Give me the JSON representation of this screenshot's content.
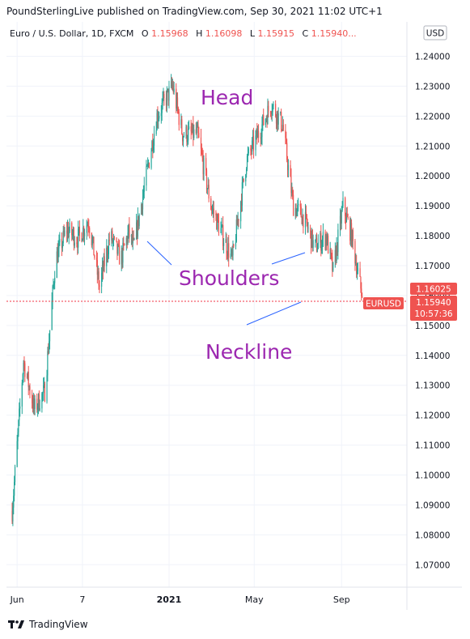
{
  "header": {
    "publisher_line": "PoundSterlingLive published on TradingView.com, Sep 30, 2021 11:02 UTC+1"
  },
  "legend": {
    "symbol": "Euro / U.S. Dollar, 1D, FXCM",
    "open_label": "O",
    "open_value": "1.15968",
    "high_label": "H",
    "high_value": "1.16098",
    "low_label": "L",
    "low_value": "1.15915",
    "close_label": "C",
    "close_value": "1.15940...",
    "currency": "USD"
  },
  "price_axis": {
    "ticks": [
      "1.24000",
      "1.23000",
      "1.22000",
      "1.21000",
      "1.20000",
      "1.19000",
      "1.18000",
      "1.17000",
      "1.16000",
      "1.15000",
      "1.14000",
      "1.13000",
      "1.12000",
      "1.11000",
      "1.10000",
      "1.09000",
      "1.08000",
      "1.07000"
    ],
    "last_price": "1.15940",
    "countdown": "10:57:36",
    "high_marker": "1.16025",
    "symbol_tag": "EURUSD"
  },
  "time_axis": {
    "ticks": [
      "Jun",
      "7",
      "2021",
      "May",
      "Sep"
    ]
  },
  "annotations": {
    "head": "Head",
    "shoulders": "Shoulders",
    "neckline": "Neckline"
  },
  "footer": {
    "brand": "TradingView"
  },
  "colors": {
    "up": "#26a69a",
    "down": "#ef5350",
    "annotation_text": "#9c27b0",
    "annotation_line": "#2962ff",
    "neckline": "#f23645",
    "grid": "#f0f3fa"
  },
  "chart_data": {
    "type": "candlestick",
    "title": "Euro / U.S. Dollar, 1D, FXCM",
    "ylim": [
      1.0625,
      1.2515
    ],
    "x_ticks": [
      "Jun",
      "7",
      "2021",
      "May",
      "Sep"
    ],
    "neckline_level": 1.16,
    "last_close": 1.1594,
    "ohlc_last": {
      "open": 1.15968,
      "high": 1.16098,
      "low": 1.15915,
      "close": 1.1594
    },
    "path": [
      [
        "2020-05-25",
        1.088
      ],
      [
        "2020-06-10",
        1.138
      ],
      [
        "2020-06-25",
        1.122
      ],
      [
        "2020-07-10",
        1.128
      ],
      [
        "2020-07-25",
        1.172
      ],
      [
        "2020-08-10",
        1.182
      ],
      [
        "2020-08-25",
        1.179
      ],
      [
        "2020-09-10",
        1.185
      ],
      [
        "2020-09-25",
        1.163
      ],
      [
        "2020-10-10",
        1.18
      ],
      [
        "2020-10-25",
        1.172
      ],
      [
        "2020-11-05",
        1.181
      ],
      [
        "2020-11-12",
        1.176
      ],
      [
        "2020-11-30",
        1.2
      ],
      [
        "2020-12-15",
        1.22
      ],
      [
        "2021-01-06",
        1.23
      ],
      [
        "2021-01-20",
        1.214
      ],
      [
        "2021-02-10",
        1.214
      ],
      [
        "2021-03-01",
        1.19
      ],
      [
        "2021-03-31",
        1.172
      ],
      [
        "2021-04-20",
        1.205
      ],
      [
        "2021-05-25",
        1.224
      ],
      [
        "2021-06-10",
        1.217
      ],
      [
        "2021-06-25",
        1.19
      ],
      [
        "2021-07-10",
        1.186
      ],
      [
        "2021-07-25",
        1.176
      ],
      [
        "2021-08-10",
        1.18
      ],
      [
        "2021-08-20",
        1.168
      ],
      [
        "2021-09-03",
        1.19
      ],
      [
        "2021-09-15",
        1.18
      ],
      [
        "2021-09-30",
        1.1594
      ]
    ]
  }
}
